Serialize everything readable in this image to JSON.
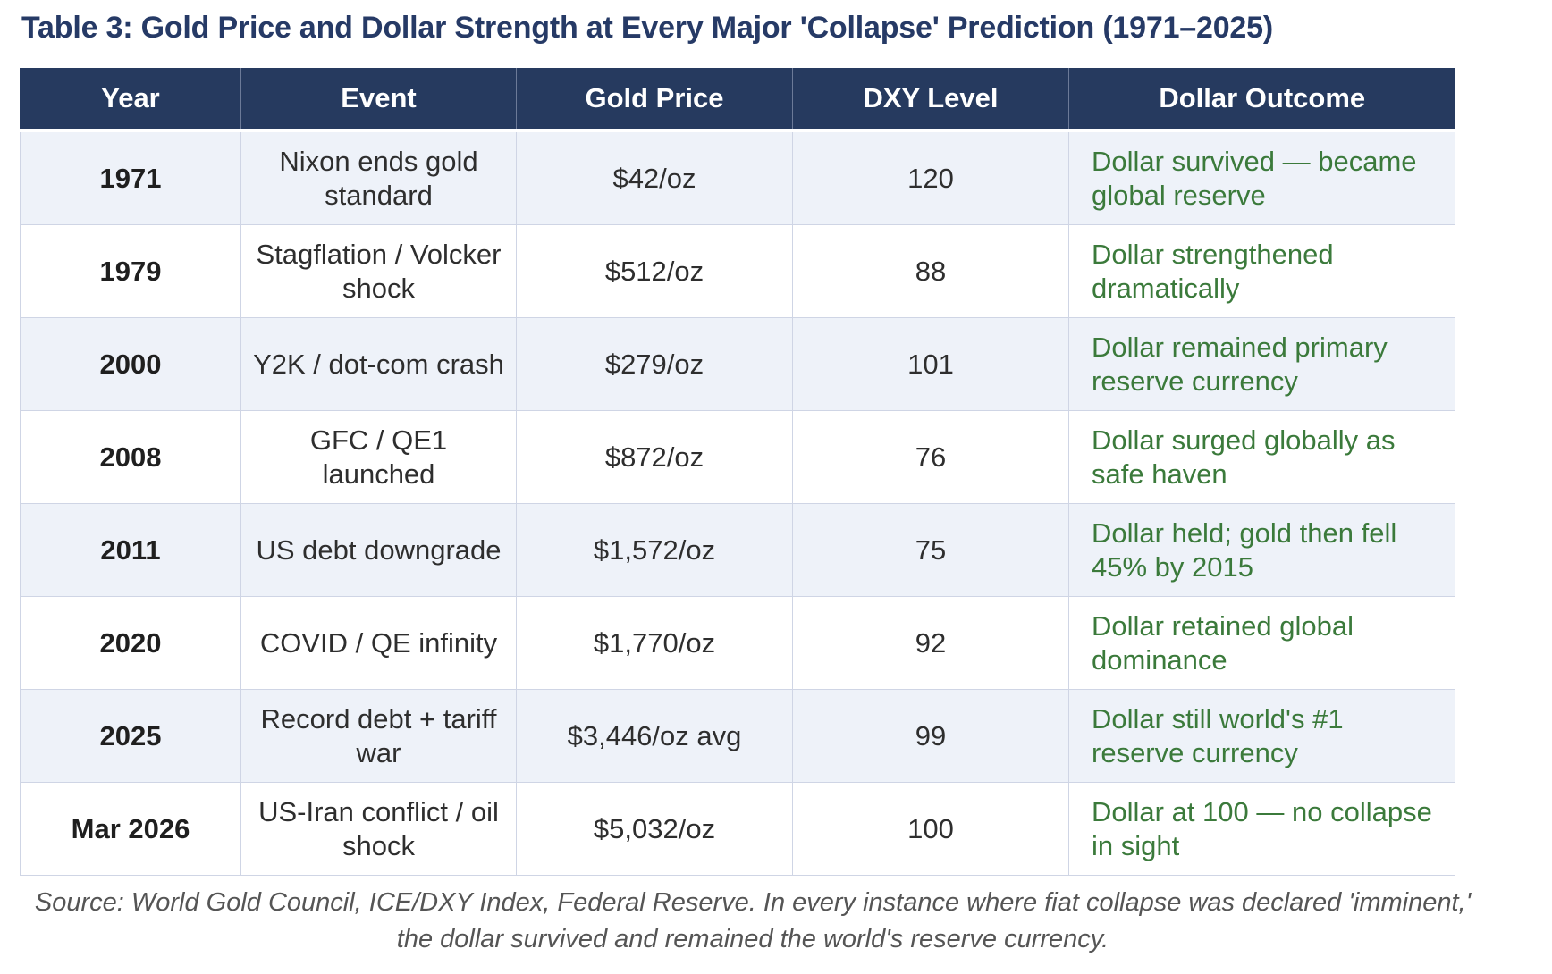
{
  "title": "Table 3: Gold Price and Dollar Strength at Every Major 'Collapse' Prediction (1971–2025)",
  "headers": [
    "Year",
    "Event",
    "Gold Price",
    "DXY Level",
    "Dollar Outcome"
  ],
  "rows": [
    {
      "year": "1971",
      "event": "Nixon ends gold standard",
      "gold": "$42/oz",
      "dxy": "120",
      "outcome": "Dollar survived — became global reserve"
    },
    {
      "year": "1979",
      "event": "Stagflation / Volcker shock",
      "gold": "$512/oz",
      "dxy": "88",
      "outcome": "Dollar strengthened dramatically"
    },
    {
      "year": "2000",
      "event": "Y2K / dot-com crash",
      "gold": "$279/oz",
      "dxy": "101",
      "outcome": "Dollar remained primary reserve currency"
    },
    {
      "year": "2008",
      "event": "GFC / QE1 launched",
      "gold": "$872/oz",
      "dxy": "76",
      "outcome": "Dollar surged globally as safe haven"
    },
    {
      "year": "2011",
      "event": "US debt downgrade",
      "gold": "$1,572/oz",
      "dxy": "75",
      "outcome": "Dollar held; gold then fell 45% by 2015"
    },
    {
      "year": "2020",
      "event": "COVID / QE infinity",
      "gold": "$1,770/oz",
      "dxy": "92",
      "outcome": "Dollar retained global dominance"
    },
    {
      "year": "2025",
      "event": "Record debt + tariff war",
      "gold": "$3,446/oz avg",
      "dxy": "99",
      "outcome": "Dollar still world's #1 reserve currency"
    },
    {
      "year": "Mar 2026",
      "event": "US-Iran conflict / oil shock",
      "gold": "$5,032/oz",
      "dxy": "100",
      "outcome": "Dollar at 100 — no collapse in sight"
    }
  ],
  "source": "Source: World Gold Council, ICE/DXY Index, Federal Reserve. In every instance where fiat collapse was declared 'imminent,' the dollar survived and remained the world's reserve currency.",
  "colors": {
    "header_bg": "#263a5f",
    "title": "#263a66",
    "outcome_text": "#3b7a3b",
    "shaded_row": "#eef2f9"
  }
}
